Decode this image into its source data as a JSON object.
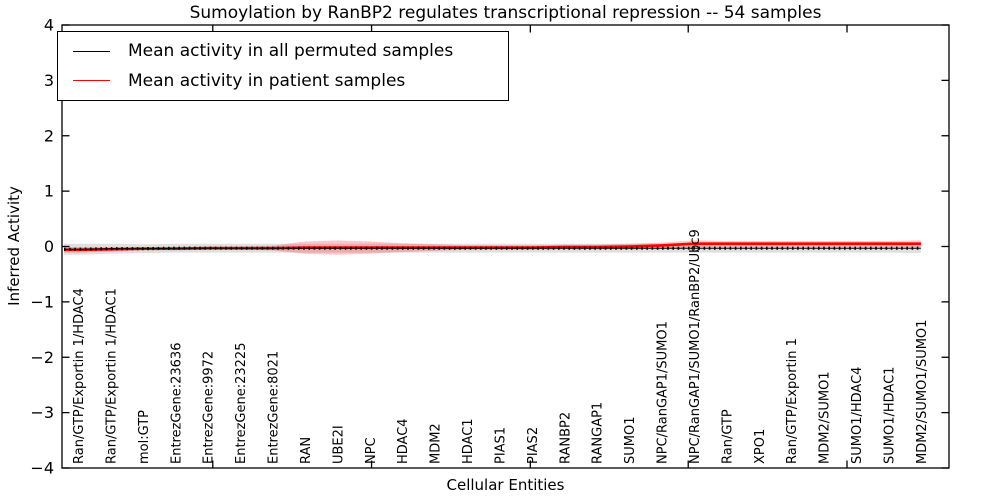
{
  "title": "Sumoylation by RanBP2 regulates transcriptional repression -- 54 samples",
  "legend": {
    "items": [
      {
        "label": "Mean activity in all permuted samples",
        "color": "#000000"
      },
      {
        "label": "Mean activity in patient samples",
        "color": "#ff0000"
      }
    ],
    "position": "upper left"
  },
  "chart_data": {
    "type": "line",
    "title": "Sumoylation by RanBP2 regulates transcriptional repression -- 54 samples",
    "xlabel": "Cellular Entities",
    "ylabel": "Inferred Activity",
    "ylim": [
      -4,
      4
    ],
    "yticks": [
      4,
      3,
      2,
      1,
      0,
      -1,
      -2,
      -3,
      -4
    ],
    "grid": false,
    "legend_position": "upper left",
    "colors": {
      "permuted": "#000000",
      "patient": "#ff0000",
      "permuted_band": "#b8b8b8",
      "patient_band": "#ff0000"
    },
    "categories": [
      "Ran/GTP/Exportin 1/HDAC4",
      "Ran/GTP/Exportin 1/HDAC1",
      "mol:GTP",
      "EntrezGene:23636",
      "EntrezGene:9972",
      "EntrezGene:23225",
      "EntrezGene:8021",
      "RAN",
      "UBE2I",
      "NPC",
      "HDAC4",
      "MDM2",
      "HDAC1",
      "PIAS1",
      "PIAS2",
      "RANBP2",
      "RANGAP1",
      "SUMO1",
      "NPC/RanGAP1/SUMO1",
      "NPC/RanGAP1/SUMO1/RanBP2/Ubc9",
      "Ran/GTP",
      "XPO1",
      "Ran/GTP/Exportin 1",
      "MDM2/SUMO1",
      "SUMO1/HDAC4",
      "SUMO1/HDAC1",
      "MDM2/SUMO1/SUMO1"
    ],
    "series": [
      {
        "name": "Mean activity in all permuted samples",
        "color": "#000000",
        "marker": "+",
        "values": [
          -0.05,
          -0.04,
          -0.04,
          -0.03,
          -0.03,
          -0.03,
          -0.03,
          -0.03,
          -0.03,
          -0.03,
          -0.03,
          -0.03,
          -0.03,
          -0.03,
          -0.03,
          -0.03,
          -0.03,
          -0.03,
          -0.03,
          -0.03,
          -0.03,
          -0.03,
          -0.03,
          -0.03,
          -0.03,
          -0.03,
          -0.03
        ],
        "std": [
          0.1,
          0.09,
          0.08,
          0.08,
          0.08,
          0.08,
          0.08,
          0.08,
          0.08,
          0.08,
          0.08,
          0.08,
          0.08,
          0.08,
          0.08,
          0.08,
          0.08,
          0.08,
          0.08,
          0.08,
          0.08,
          0.08,
          0.08,
          0.08,
          0.08,
          0.08,
          0.09
        ]
      },
      {
        "name": "Mean activity in patient samples",
        "color": "#ff0000",
        "marker": "none",
        "values": [
          -0.06,
          -0.05,
          -0.04,
          -0.04,
          -0.03,
          -0.03,
          -0.03,
          -0.02,
          -0.02,
          -0.02,
          -0.02,
          -0.02,
          -0.02,
          -0.02,
          -0.02,
          -0.01,
          -0.01,
          0.0,
          0.02,
          0.05,
          0.05,
          0.05,
          0.05,
          0.05,
          0.05,
          0.05,
          0.05
        ],
        "std": [
          0.05,
          0.04,
          0.03,
          0.03,
          0.03,
          0.03,
          0.04,
          0.11,
          0.13,
          0.11,
          0.08,
          0.06,
          0.04,
          0.04,
          0.04,
          0.04,
          0.04,
          0.05,
          0.05,
          0.06,
          0.05,
          0.05,
          0.05,
          0.05,
          0.05,
          0.05,
          0.06
        ]
      }
    ]
  }
}
